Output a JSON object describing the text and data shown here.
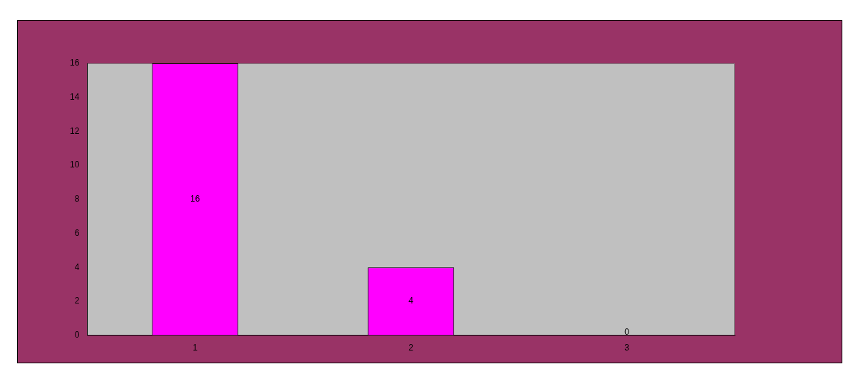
{
  "chart_data": {
    "type": "bar",
    "categories": [
      "1",
      "2",
      "3"
    ],
    "values": [
      16,
      4,
      0
    ],
    "color": "#ff00ff",
    "ylim": [
      0,
      16
    ],
    "yticks": [
      0,
      2,
      4,
      6,
      8,
      10,
      12,
      14,
      16
    ],
    "grid": false,
    "data_labels": true
  }
}
